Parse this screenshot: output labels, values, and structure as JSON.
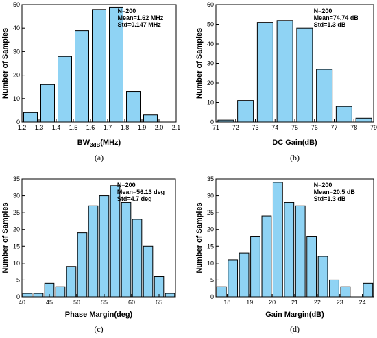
{
  "colors": {
    "bar_fill": "#8fd3f4",
    "bar_edge": "#000000",
    "axis": "#000000"
  },
  "chart_data": [
    {
      "type": "bar",
      "panel": "(a)",
      "ylabel": "Number of Samples",
      "xlabel": {
        "main": "BW",
        "sub": "3dB",
        "unit": "(MHz)"
      },
      "x_centers": [
        1.25,
        1.35,
        1.45,
        1.55,
        1.65,
        1.75,
        1.85,
        1.95
      ],
      "bar_width": 0.08,
      "values": [
        4,
        16,
        28,
        39,
        48,
        49,
        13,
        3
      ],
      "xlim": [
        1.2,
        2.1
      ],
      "ylim": [
        0,
        50
      ],
      "xticks": [
        1.2,
        1.3,
        1.4,
        1.5,
        1.6,
        1.7,
        1.8,
        1.9,
        2.0,
        2.1
      ],
      "xtick_labels": [
        "1.2",
        "1.3",
        "1.4",
        "1.5",
        "1.6",
        "1.7",
        "1.8",
        "1.9",
        "2.0",
        "2.1"
      ],
      "yticks": [
        0,
        10,
        20,
        30,
        40,
        50
      ],
      "annotations": [
        "N=200",
        "Mean=1.62 MHz",
        "Std=0.147 MHz"
      ]
    },
    {
      "type": "bar",
      "panel": "(b)",
      "ylabel": "Number of Samples",
      "xlabel": {
        "main": "DC Gain(dB)"
      },
      "x_centers": [
        71.5,
        72.5,
        73.5,
        74.5,
        75.5,
        76.5,
        77.5,
        78.5
      ],
      "bar_width": 0.8,
      "values": [
        1,
        11,
        51,
        52,
        48,
        27,
        8,
        2
      ],
      "xlim": [
        71,
        79
      ],
      "ylim": [
        0,
        60
      ],
      "xticks": [
        71,
        72,
        73,
        74,
        75,
        76,
        77,
        78,
        79
      ],
      "xtick_labels": [
        "71",
        "72",
        "73",
        "74",
        "75",
        "76",
        "77",
        "78",
        "79"
      ],
      "yticks": [
        0,
        10,
        20,
        30,
        40,
        50,
        60
      ],
      "annotations": [
        "N=200",
        "Mean=74.74 dB",
        "Std=1.3 dB"
      ]
    },
    {
      "type": "bar",
      "panel": "(c)",
      "ylabel": "Number of Samples",
      "xlabel": {
        "main": "Phase Margin(deg)"
      },
      "x_centers": [
        41,
        43,
        45,
        47,
        49,
        51,
        53,
        55,
        57,
        59,
        61,
        63,
        65,
        67
      ],
      "bar_width": 1.7,
      "values": [
        1,
        1,
        4,
        3,
        9,
        19,
        27,
        30,
        33,
        28,
        23,
        15,
        6,
        1
      ],
      "xlim": [
        40,
        68
      ],
      "ylim": [
        0,
        35
      ],
      "xticks": [
        40,
        45,
        50,
        55,
        60,
        65
      ],
      "xtick_labels": [
        "40",
        "45",
        "50",
        "55",
        "60",
        "65"
      ],
      "yticks": [
        0,
        5,
        10,
        15,
        20,
        25,
        30,
        35
      ],
      "annotations": [
        "N=200",
        "Mean=56.13 deg",
        "Std=4.7 deg"
      ]
    },
    {
      "type": "bar",
      "panel": "(d)",
      "ylabel": "Number of Samples",
      "xlabel": {
        "main": "Gain Margin(dB)"
      },
      "x_centers": [
        17.75,
        18.25,
        18.75,
        19.25,
        19.75,
        20.25,
        20.75,
        21.25,
        21.75,
        22.25,
        22.75,
        23.25,
        24.25
      ],
      "bar_width": 0.42,
      "values": [
        3,
        11,
        13,
        18,
        24,
        34,
        28,
        27,
        18,
        12,
        5,
        3,
        4
      ],
      "xlim": [
        17.5,
        24.5
      ],
      "ylim": [
        0,
        35
      ],
      "xticks": [
        18,
        19,
        20,
        21,
        22,
        23,
        24
      ],
      "xtick_labels": [
        "18",
        "19",
        "20",
        "21",
        "22",
        "23",
        "24"
      ],
      "yticks": [
        0,
        5,
        10,
        15,
        20,
        25,
        30,
        35
      ],
      "annotations": [
        "N=200",
        "Mean=20.5 dB",
        "Std=1.3 dB"
      ]
    }
  ]
}
